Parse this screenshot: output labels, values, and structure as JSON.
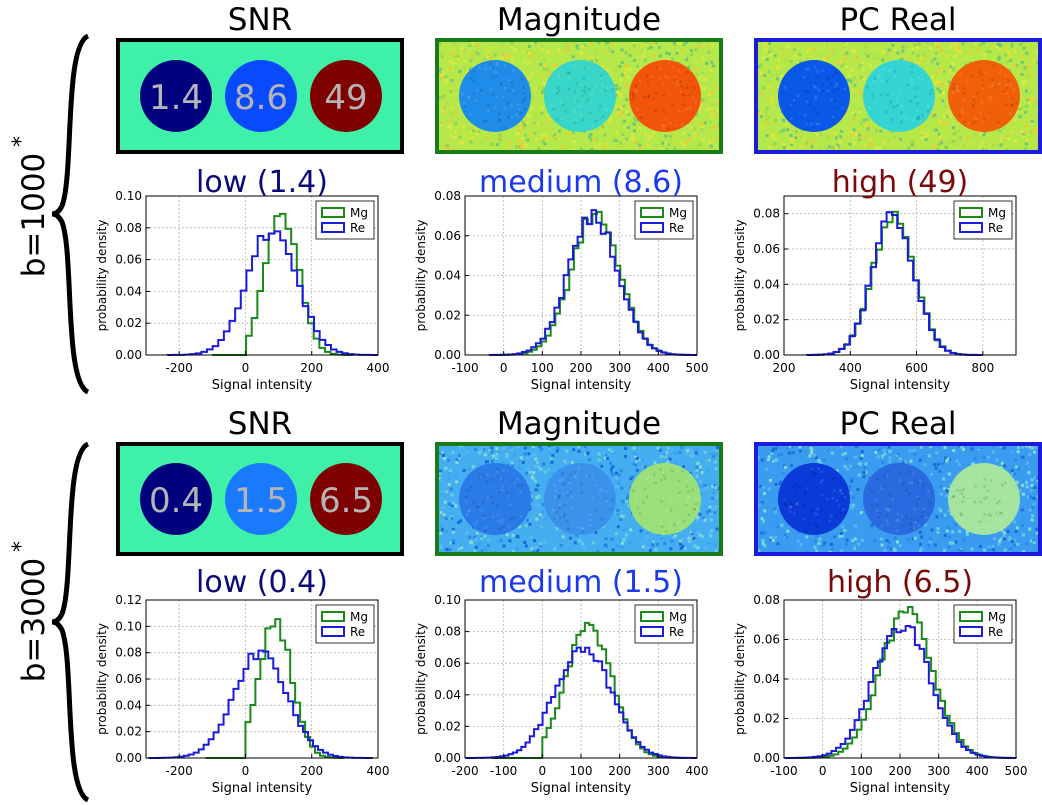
{
  "colors": {
    "mg": "#1a8a1a",
    "re": "#1b1bdd",
    "low": "#0a0a7a",
    "medium": "#1a3aee",
    "high": "#7a0a0a",
    "snr_bg": "#3ef0a8",
    "snr_frame": "#000000",
    "mag_frame": "#1b7a1b",
    "real_frame": "#1b1bdd",
    "phantom_text": "#b5b5b5"
  },
  "rows": [
    {
      "row_label": "b=1000",
      "row_label_sup": "*",
      "panel_titles": [
        "SNR",
        "Magnitude",
        "PC Real"
      ],
      "snr_values": [
        "1.4",
        "8.6",
        "49"
      ],
      "snr_circle_colors": [
        "#00007f",
        "#0a4aff",
        "#7f0000"
      ],
      "mag_bg": "#b6e84a",
      "mag_circle_colors": [
        "#1e8ce8",
        "#38d6c8",
        "#f2540a"
      ],
      "real_bg": "#b6e84a",
      "real_circle_colors": [
        "#0a58e8",
        "#34d4d4",
        "#f06008"
      ],
      "charts": [
        {
          "title": "low (1.4)",
          "title_color_key": "low",
          "xlabel": "Signal intensity",
          "ylabel": "probability density",
          "xlim": [
            -300,
            400
          ],
          "xticks": [
            -200,
            0,
            200,
            400
          ],
          "ylim": [
            0,
            0.1
          ],
          "yticks": [
            "0.00",
            "0.02",
            "0.04",
            "0.06",
            "0.08",
            "0.10"
          ],
          "mg": {
            "center": 110,
            "sd": 50,
            "peak": 0.09,
            "cutoff": 0
          },
          "re": {
            "center": 80,
            "sd": 75,
            "peak": 0.079
          },
          "binwidth": 17
        },
        {
          "title": "medium (8.6)",
          "title_color_key": "medium",
          "xlabel": "Signal intensity",
          "ylabel": "probability density",
          "xlim": [
            -100,
            500
          ],
          "xticks": [
            -100,
            0,
            100,
            200,
            300,
            400,
            500
          ],
          "ylim": [
            0,
            0.08
          ],
          "yticks": [
            "0.00",
            "0.02",
            "0.04",
            "0.06",
            "0.08"
          ],
          "mg": {
            "center": 238,
            "sd": 62,
            "peak": 0.071,
            "cutoff": -1000
          },
          "re": {
            "center": 232,
            "sd": 64,
            "peak": 0.07
          },
          "binwidth": 12
        },
        {
          "title": "high (49)",
          "title_color_key": "high",
          "xlabel": "Signal intensity",
          "ylabel": "probability density",
          "xlim": [
            200,
            900
          ],
          "xticks": [
            200,
            400,
            600,
            800
          ],
          "ylim": [
            0,
            0.09
          ],
          "yticks": [
            "0.00",
            "0.02",
            "0.04",
            "0.06",
            "0.08"
          ],
          "mg": {
            "center": 532,
            "sd": 62,
            "peak": 0.081,
            "cutoff": -1000
          },
          "re": {
            "center": 530,
            "sd": 62,
            "peak": 0.08
          },
          "binwidth": 16
        }
      ],
      "legend": [
        "Mg",
        "Re"
      ]
    },
    {
      "row_label": "b=3000",
      "row_label_sup": "*",
      "panel_titles": [
        "SNR",
        "Magnitude",
        "PC Real"
      ],
      "snr_values": [
        "0.4",
        "1.5",
        "6.5"
      ],
      "snr_circle_colors": [
        "#00007f",
        "#1a7aff",
        "#7f0000"
      ],
      "mag_bg": "#44aef0",
      "mag_circle_colors": [
        "#2a7ae8",
        "#3a92ea",
        "#9ae07a"
      ],
      "real_bg": "#3a9cf0",
      "real_circle_colors": [
        "#0a3ad8",
        "#2a6ae0",
        "#a4e4a0"
      ],
      "charts": [
        {
          "title": "low (0.4)",
          "title_color_key": "low",
          "xlabel": "Signal intensity",
          "ylabel": "probability density",
          "xlim": [
            -300,
            400
          ],
          "xticks": [
            -200,
            0,
            200,
            400
          ],
          "ylim": [
            0,
            0.12
          ],
          "yticks": [
            "0.00",
            "0.02",
            "0.04",
            "0.06",
            "0.08",
            "0.10",
            "0.12"
          ],
          "mg": {
            "center": 90,
            "sd": 50,
            "peak": 0.104,
            "cutoff": 0
          },
          "re": {
            "center": 45,
            "sd": 80,
            "peak": 0.08
          },
          "binwidth": 15
        },
        {
          "title": "medium (1.5)",
          "title_color_key": "medium",
          "xlabel": "Signal intensity",
          "ylabel": "probability density",
          "xlim": [
            -200,
            400
          ],
          "xticks": [
            -200,
            -100,
            0,
            100,
            200,
            300,
            400
          ],
          "ylim": [
            0,
            0.1
          ],
          "yticks": [
            "0.00",
            "0.02",
            "0.04",
            "0.06",
            "0.08",
            "0.10"
          ],
          "mg": {
            "center": 120,
            "sd": 60,
            "peak": 0.083,
            "cutoff": 0
          },
          "re": {
            "center": 105,
            "sd": 72,
            "peak": 0.071
          },
          "binwidth": 11
        },
        {
          "title": "high (6.5)",
          "title_color_key": "high",
          "xlabel": "Signal intensity",
          "ylabel": "probability density",
          "xlim": [
            -100,
            500
          ],
          "xticks": [
            -100,
            0,
            100,
            200,
            300,
            400,
            500
          ],
          "ylim": [
            0,
            0.08
          ],
          "yticks": [
            "0.00",
            "0.02",
            "0.04",
            "0.06",
            "0.08"
          ],
          "mg": {
            "center": 218,
            "sd": 68,
            "peak": 0.074,
            "cutoff": -1000
          },
          "re": {
            "center": 205,
            "sd": 72,
            "peak": 0.068
          },
          "binwidth": 12
        }
      ],
      "legend": [
        "Mg",
        "Re"
      ]
    }
  ]
}
